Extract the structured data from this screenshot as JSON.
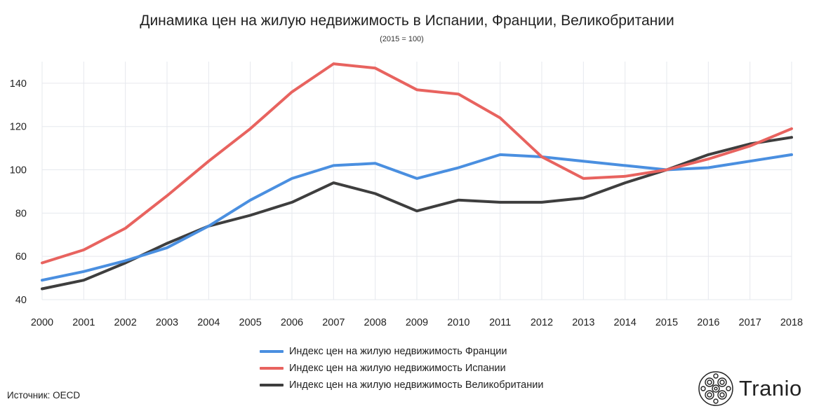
{
  "chart_data": {
    "type": "line",
    "title": "Динамика цен на жилую недвижимость в Испании, Франции, Великобритании",
    "subtitle": "(2015 = 100)",
    "x": [
      2000,
      2001,
      2002,
      2003,
      2004,
      2005,
      2006,
      2007,
      2008,
      2009,
      2010,
      2011,
      2012,
      2013,
      2014,
      2015,
      2016,
      2017,
      2018
    ],
    "ylim": [
      40,
      150
    ],
    "yticks": [
      40,
      60,
      80,
      100,
      120,
      140
    ],
    "grid": true,
    "legend_position": "bottom",
    "series": [
      {
        "name": "Индекс цен на жилую недвижимость Франции",
        "color": "#4a8fe0",
        "values": [
          49,
          53,
          58,
          64,
          74,
          86,
          96,
          102,
          103,
          96,
          101,
          107,
          106,
          104,
          102,
          100,
          101,
          104,
          107
        ]
      },
      {
        "name": "Индекс цен на жилую недвижимость Испании",
        "color": "#e8635f",
        "values": [
          57,
          63,
          73,
          88,
          104,
          119,
          136,
          149,
          147,
          137,
          135,
          124,
          106,
          96,
          97,
          100,
          105,
          111,
          119
        ]
      },
      {
        "name": "Индекс цен на жилую недвижимость Великобритании",
        "color": "#3e3e3e",
        "values": [
          45,
          49,
          57,
          66,
          74,
          79,
          85,
          94,
          89,
          81,
          86,
          85,
          85,
          87,
          94,
          100,
          107,
          112,
          115
        ]
      }
    ]
  },
  "source": "Источник: OECD",
  "logo": {
    "text": "Tranio",
    "icon": "tranio-logo-icon"
  }
}
